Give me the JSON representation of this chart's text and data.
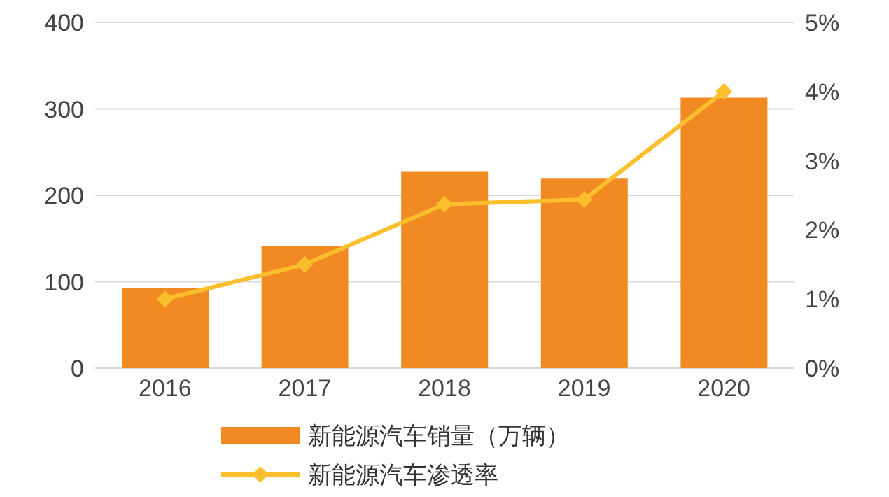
{
  "chart_data": {
    "type": "bar",
    "categories": [
      "2016",
      "2017",
      "2018",
      "2019",
      "2020"
    ],
    "series": [
      {
        "name": "新能源汽车销量（万辆）",
        "color": "#f28a24",
        "values": [
          93,
          141,
          228,
          220,
          313
        ]
      },
      {
        "name": "新能源汽车渗透率",
        "type": "line",
        "axis": "y2",
        "color": "#fbbf2d",
        "marker": "diamond",
        "values": [
          1.0,
          1.5,
          2.37,
          2.44,
          4.0
        ]
      }
    ],
    "ylim": [
      0,
      400
    ],
    "yticks": [
      0,
      100,
      200,
      300,
      400
    ],
    "y2lim": [
      0,
      5
    ],
    "y2ticks": [
      {
        "value": 0,
        "label": "0%"
      },
      {
        "value": 1,
        "label": "1%"
      },
      {
        "value": 2,
        "label": "2%"
      },
      {
        "value": 3,
        "label": "3%"
      },
      {
        "value": 4,
        "label": "4%"
      },
      {
        "value": 5,
        "label": "5%"
      }
    ],
    "grid": "y",
    "legend": "bottom"
  }
}
